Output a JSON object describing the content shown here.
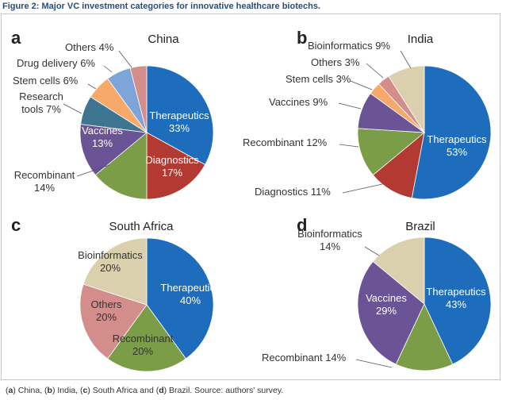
{
  "figure_title": "Figure 2: Major VC investment categories for innovative healthcare biotechs.",
  "caption": {
    "parts": [
      {
        "text": "(",
        "bold": false
      },
      {
        "text": "a",
        "bold": true
      },
      {
        "text": ") China, (",
        "bold": false
      },
      {
        "text": "b",
        "bold": true
      },
      {
        "text": ") India, (",
        "bold": false
      },
      {
        "text": "c",
        "bold": true
      },
      {
        "text": ") South Africa and (",
        "bold": false
      },
      {
        "text": "d",
        "bold": true
      },
      {
        "text": ") Brazil. Source: authors' survey.",
        "bold": false
      }
    ]
  },
  "colors": {
    "Therapeutics": "#1e6dbd",
    "Diagnostics": "#b23a32",
    "Recombinant": "#7c9d47",
    "Vaccines": "#6a5496",
    "Research tools": "#3e7691",
    "Stem cells": "#f7a96c",
    "Drug delivery": "#7ea5d9",
    "Others": "#d38e8c",
    "Bioinformatics": "#dbd0ad"
  },
  "chart_data": [
    {
      "type": "pie",
      "panel_letter": "a",
      "title": "China",
      "start": "12 o'clock, clockwise",
      "slices": [
        {
          "category": "Therapeutics",
          "label": "Therapeutics",
          "value": 33,
          "value_text": "33%"
        },
        {
          "category": "Diagnostics",
          "label": "Diagnostics",
          "value": 17,
          "value_text": "17%"
        },
        {
          "category": "Recombinant",
          "label": "Recombinant",
          "value": 14,
          "value_text": "14%"
        },
        {
          "category": "Vaccines",
          "label": "Vaccines",
          "value": 13,
          "value_text": "13%"
        },
        {
          "category": "Research tools",
          "label": "Research tools",
          "value": 7,
          "value_text": "7%"
        },
        {
          "category": "Stem cells",
          "label": "Stem cells",
          "value": 6,
          "value_text": "6%"
        },
        {
          "category": "Drug delivery",
          "label": "Drug delivery",
          "value": 6,
          "value_text": "6%"
        },
        {
          "category": "Others",
          "label": "Others",
          "value": 4,
          "value_text": "4%"
        }
      ]
    },
    {
      "type": "pie",
      "panel_letter": "b",
      "title": "India",
      "start": "12 o'clock, clockwise",
      "slices": [
        {
          "category": "Therapeutics",
          "label": "Therapeutics",
          "value": 53,
          "value_text": "53%"
        },
        {
          "category": "Diagnostics",
          "label": "Diagnostics",
          "value": 11,
          "value_text": "11%"
        },
        {
          "category": "Recombinant",
          "label": "Recombinant",
          "value": 12,
          "value_text": "12%"
        },
        {
          "category": "Vaccines",
          "label": "Vaccines",
          "value": 9,
          "value_text": "9%"
        },
        {
          "category": "Stem cells",
          "label": "Stem cells",
          "value": 3,
          "value_text": "3%"
        },
        {
          "category": "Others",
          "label": "Others",
          "value": 3,
          "value_text": "3%"
        },
        {
          "category": "Bioinformatics",
          "label": "Bioinformatics",
          "value": 9,
          "value_text": "9%"
        }
      ]
    },
    {
      "type": "pie",
      "panel_letter": "c",
      "title": "South Africa",
      "start": "12 o'clock, clockwise",
      "slices": [
        {
          "category": "Therapeutics",
          "label": "Therapeutics",
          "value": 40,
          "value_text": "40%"
        },
        {
          "category": "Recombinant",
          "label": "Recombinant",
          "value": 20,
          "value_text": "20%"
        },
        {
          "category": "Others",
          "label": "Others",
          "value": 20,
          "value_text": "20%"
        },
        {
          "category": "Bioinformatics",
          "label": "Bioinformatics",
          "value": 20,
          "value_text": "20%"
        }
      ]
    },
    {
      "type": "pie",
      "panel_letter": "d",
      "title": "Brazil",
      "start": "12 o'clock, clockwise",
      "slices": [
        {
          "category": "Therapeutics",
          "label": "Therapeutics",
          "value": 43,
          "value_text": "43%"
        },
        {
          "category": "Recombinant",
          "label": "Recombinant",
          "value": 14,
          "value_text": "14%"
        },
        {
          "category": "Vaccines",
          "label": "Vaccines",
          "value": 29,
          "value_text": "29%"
        },
        {
          "category": "Bioinformatics",
          "label": "Bioinformatics",
          "value": 14,
          "value_text": "14%"
        }
      ]
    }
  ]
}
